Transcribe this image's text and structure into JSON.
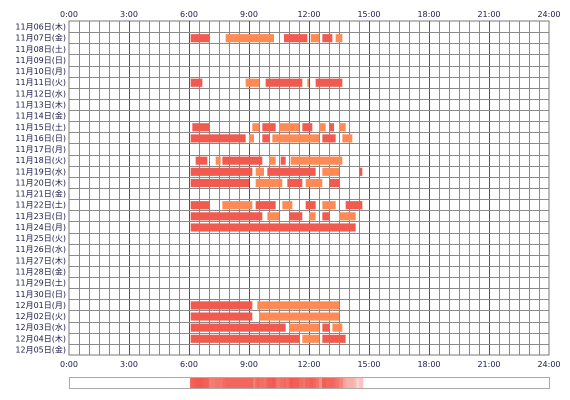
{
  "chart_data": {
    "type": "timeline",
    "title": "",
    "xlabel": "",
    "ylabel": "",
    "x_range": [
      "0:00",
      "24:00"
    ],
    "x_ticks": [
      "0:00",
      "3:00",
      "6:00",
      "9:00",
      "12:00",
      "15:00",
      "18:00",
      "21:00",
      "24:00"
    ],
    "grid": true,
    "legend": "none",
    "colors": {
      "primary": "#f05a4f",
      "secondary": "#ff8a55",
      "grid": "#777777",
      "text": "#1a1a4a"
    },
    "days": [
      {
        "label": "11月06日(木)",
        "intervals": []
      },
      {
        "label": "11月07日(金)",
        "intervals": [
          [
            "6:05",
            "7:00"
          ],
          [
            "7:50",
            "10:15"
          ],
          [
            "10:45",
            "11:55"
          ],
          [
            "12:05",
            "12:30"
          ],
          [
            "12:40",
            "13:10"
          ],
          [
            "13:20",
            "13:40"
          ]
        ]
      },
      {
        "label": "11月08日(土)",
        "intervals": []
      },
      {
        "label": "11月09日(日)",
        "intervals": []
      },
      {
        "label": "11月10日(月)",
        "intervals": []
      },
      {
        "label": "11月11日(火)",
        "intervals": [
          [
            "6:05",
            "6:40"
          ],
          [
            "8:50",
            "9:30"
          ],
          [
            "9:50",
            "11:40"
          ],
          [
            "11:55",
            "12:00"
          ],
          [
            "12:20",
            "13:40"
          ]
        ]
      },
      {
        "label": "11月12日(水)",
        "intervals": []
      },
      {
        "label": "11月13日(木)",
        "intervals": []
      },
      {
        "label": "11月14日(金)",
        "intervals": []
      },
      {
        "label": "11月15日(土)",
        "intervals": [
          [
            "6:10",
            "7:00"
          ],
          [
            "9:10",
            "9:30"
          ],
          [
            "9:40",
            "10:20"
          ],
          [
            "10:30",
            "11:30"
          ],
          [
            "11:40",
            "12:10"
          ],
          [
            "12:30",
            "12:50"
          ],
          [
            "13:00",
            "13:15"
          ],
          [
            "13:30",
            "13:50"
          ]
        ]
      },
      {
        "label": "11月16日(日)",
        "intervals": [
          [
            "6:05",
            "8:50"
          ],
          [
            "9:00",
            "9:15"
          ],
          [
            "9:40",
            "10:00"
          ],
          [
            "10:10",
            "12:30"
          ],
          [
            "12:40",
            "13:20"
          ],
          [
            "13:40",
            "14:10"
          ]
        ]
      },
      {
        "label": "11月17日(月)",
        "intervals": []
      },
      {
        "label": "11月18日(火)",
        "intervals": [
          [
            "6:20",
            "6:55"
          ],
          [
            "7:20",
            "7:35"
          ],
          [
            "7:40",
            "9:40"
          ],
          [
            "10:00",
            "10:20"
          ],
          [
            "10:35",
            "10:50"
          ],
          [
            "11:05",
            "13:40"
          ]
        ]
      },
      {
        "label": "11月19日(水)",
        "intervals": [
          [
            "6:05",
            "9:10"
          ],
          [
            "9:20",
            "9:45"
          ],
          [
            "9:55",
            "12:20"
          ],
          [
            "12:40",
            "13:30"
          ],
          [
            "14:30",
            "14:40"
          ]
        ]
      },
      {
        "label": "11月20日(木)",
        "intervals": [
          [
            "6:05",
            "9:00"
          ],
          [
            "9:20",
            "10:40"
          ],
          [
            "10:55",
            "11:40"
          ],
          [
            "11:50",
            "12:40"
          ],
          [
            "13:00",
            "13:30"
          ]
        ]
      },
      {
        "label": "11月21日(金)",
        "intervals": []
      },
      {
        "label": "11月22日(土)",
        "intervals": [
          [
            "6:05",
            "7:00"
          ],
          [
            "7:40",
            "9:10"
          ],
          [
            "9:20",
            "10:20"
          ],
          [
            "10:40",
            "11:10"
          ],
          [
            "11:50",
            "12:20"
          ],
          [
            "12:40",
            "13:20"
          ],
          [
            "13:50",
            "14:40"
          ]
        ]
      },
      {
        "label": "11月23日(日)",
        "intervals": [
          [
            "6:05",
            "9:40"
          ],
          [
            "9:55",
            "10:30"
          ],
          [
            "11:00",
            "11:40"
          ],
          [
            "12:00",
            "12:20"
          ],
          [
            "12:40",
            "13:00"
          ],
          [
            "13:30",
            "14:20"
          ]
        ]
      },
      {
        "label": "11月24日(月)",
        "intervals": [
          [
            "6:05",
            "14:20"
          ]
        ]
      },
      {
        "label": "11月25日(火)",
        "intervals": []
      },
      {
        "label": "11月26日(水)",
        "intervals": []
      },
      {
        "label": "11月27日(木)",
        "intervals": []
      },
      {
        "label": "11月28日(金)",
        "intervals": []
      },
      {
        "label": "11月29日(土)",
        "intervals": []
      },
      {
        "label": "11月30日(日)",
        "intervals": []
      },
      {
        "label": "12月01日(月)",
        "intervals": [
          [
            "6:05",
            "9:10"
          ],
          [
            "9:25",
            "13:30"
          ]
        ]
      },
      {
        "label": "12月02日(火)",
        "intervals": [
          [
            "6:05",
            "9:10"
          ],
          [
            "9:30",
            "13:30"
          ]
        ]
      },
      {
        "label": "12月03日(水)",
        "intervals": [
          [
            "6:05",
            "10:50"
          ],
          [
            "11:00",
            "12:30"
          ],
          [
            "12:40",
            "13:00"
          ],
          [
            "13:10",
            "13:40"
          ]
        ]
      },
      {
        "label": "12月04日(木)",
        "intervals": [
          [
            "6:05",
            "11:30"
          ],
          [
            "11:40",
            "12:30"
          ],
          [
            "12:40",
            "13:50"
          ]
        ]
      },
      {
        "label": "12月05日(金)",
        "intervals": []
      }
    ]
  }
}
